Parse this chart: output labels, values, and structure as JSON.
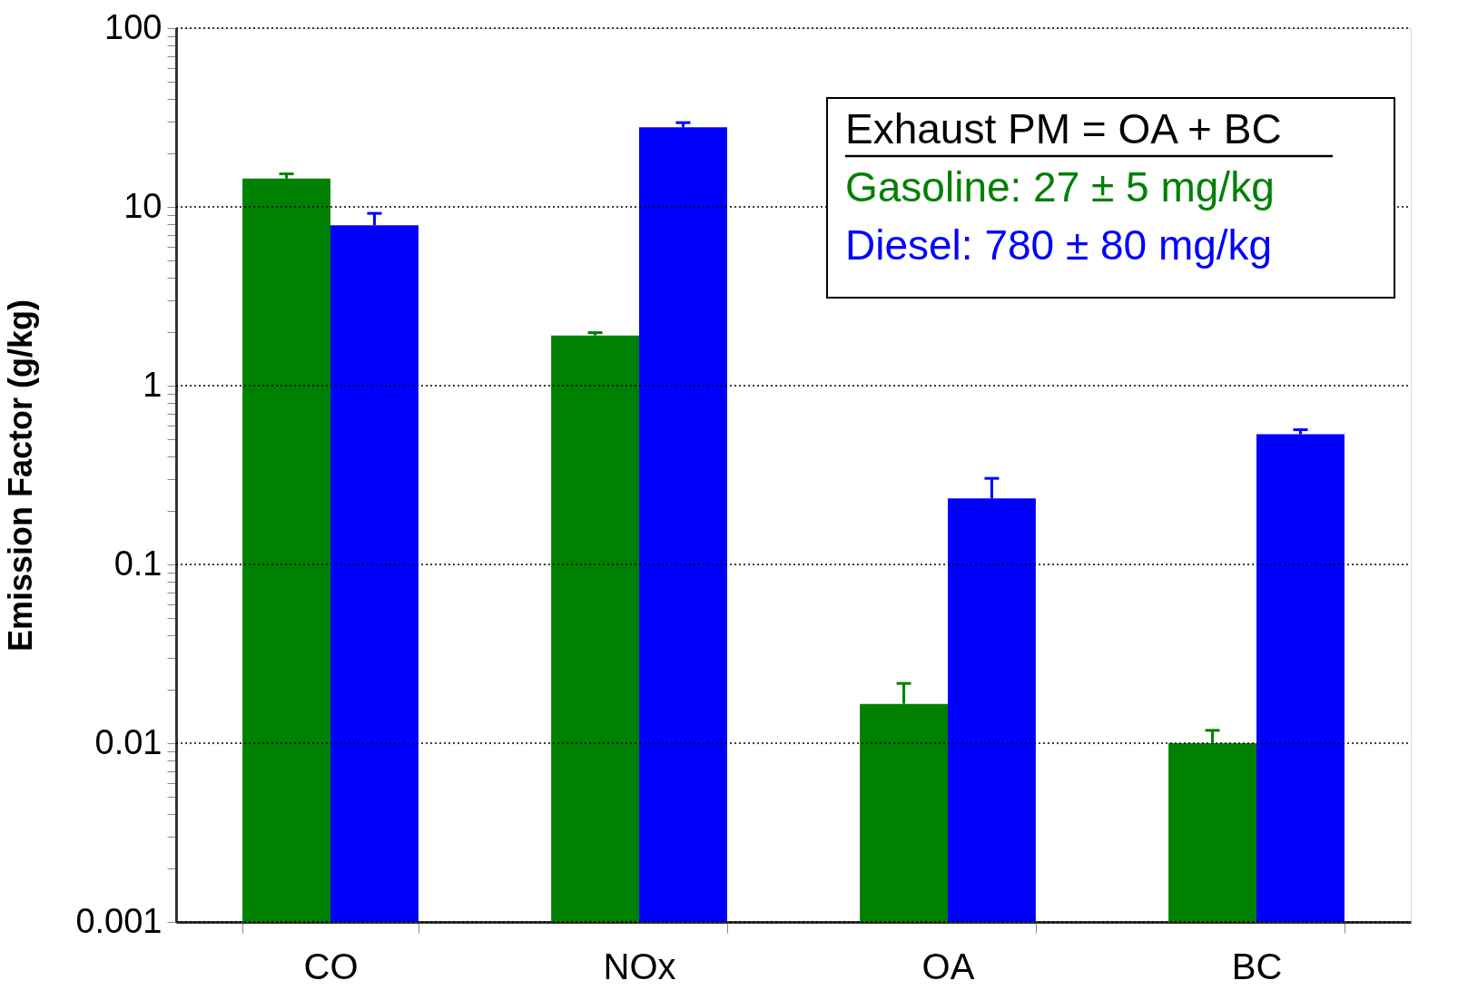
{
  "chart_data": {
    "type": "bar",
    "ylabel": "Emission Factor (g/kg)",
    "legend_title": "Exhaust PM = OA + BC",
    "categories": [
      "CO",
      "NOx",
      "OA",
      "BC"
    ],
    "series": [
      {
        "name": "Gasoline: 27 ± 5 mg/kg",
        "color": "#008000",
        "values": [
          14.4,
          1.91,
          0.0166,
          0.01
        ],
        "errors": [
          [
            14.4,
            15.3
          ],
          [
            1.91,
            1.98
          ],
          [
            0.0166,
            0.0216
          ],
          [
            0.01,
            0.0118
          ]
        ]
      },
      {
        "name": "Diesel: 780 ± 80 mg/kg",
        "color": "#0000ff",
        "values": [
          7.9,
          27.9,
          0.234,
          0.535
        ],
        "errors": [
          [
            7.9,
            9.2
          ],
          [
            27.9,
            29.6
          ],
          [
            0.234,
            0.303
          ],
          [
            0.535,
            0.567
          ]
        ]
      }
    ],
    "log": true,
    "ylim": [
      0.001,
      100
    ],
    "yticks": [
      {
        "value": 0.001,
        "label": "0.001"
      },
      {
        "value": 0.002,
        "label": null
      },
      {
        "value": 0.003,
        "label": null
      },
      {
        "value": 0.004,
        "label": null
      },
      {
        "value": 0.005,
        "label": null
      },
      {
        "value": 0.006,
        "label": null
      },
      {
        "value": 0.007,
        "label": null
      },
      {
        "value": 0.008,
        "label": null
      },
      {
        "value": 0.009,
        "label": null
      },
      {
        "value": 0.01,
        "label": "0.01"
      },
      {
        "value": 0.02,
        "label": null
      },
      {
        "value": 0.03,
        "label": null
      },
      {
        "value": 0.04,
        "label": null
      },
      {
        "value": 0.05,
        "label": null
      },
      {
        "value": 0.06,
        "label": null
      },
      {
        "value": 0.07,
        "label": null
      },
      {
        "value": 0.08,
        "label": null
      },
      {
        "value": 0.09,
        "label": null
      },
      {
        "value": 0.1,
        "label": "0.1"
      },
      {
        "value": 0.2,
        "label": null
      },
      {
        "value": 0.3,
        "label": null
      },
      {
        "value": 0.4,
        "label": null
      },
      {
        "value": 0.5,
        "label": null
      },
      {
        "value": 0.6,
        "label": null
      },
      {
        "value": 0.7,
        "label": null
      },
      {
        "value": 0.8,
        "label": null
      },
      {
        "value": 0.9,
        "label": null
      },
      {
        "value": 1,
        "label": "1"
      },
      {
        "value": 2,
        "label": null
      },
      {
        "value": 3,
        "label": null
      },
      {
        "value": 4,
        "label": null
      },
      {
        "value": 5,
        "label": null
      },
      {
        "value": 6,
        "label": null
      },
      {
        "value": 7,
        "label": null
      },
      {
        "value": 8,
        "label": null
      },
      {
        "value": 9,
        "label": null
      },
      {
        "value": 10,
        "label": "10"
      },
      {
        "value": 20,
        "label": null
      },
      {
        "value": 30,
        "label": null
      },
      {
        "value": 40,
        "label": null
      },
      {
        "value": 50,
        "label": null
      },
      {
        "value": 60,
        "label": null
      },
      {
        "value": 70,
        "label": null
      },
      {
        "value": 80,
        "label": null
      },
      {
        "value": 90,
        "label": null
      },
      {
        "value": 100,
        "label": "100"
      }
    ],
    "grid": "y"
  }
}
